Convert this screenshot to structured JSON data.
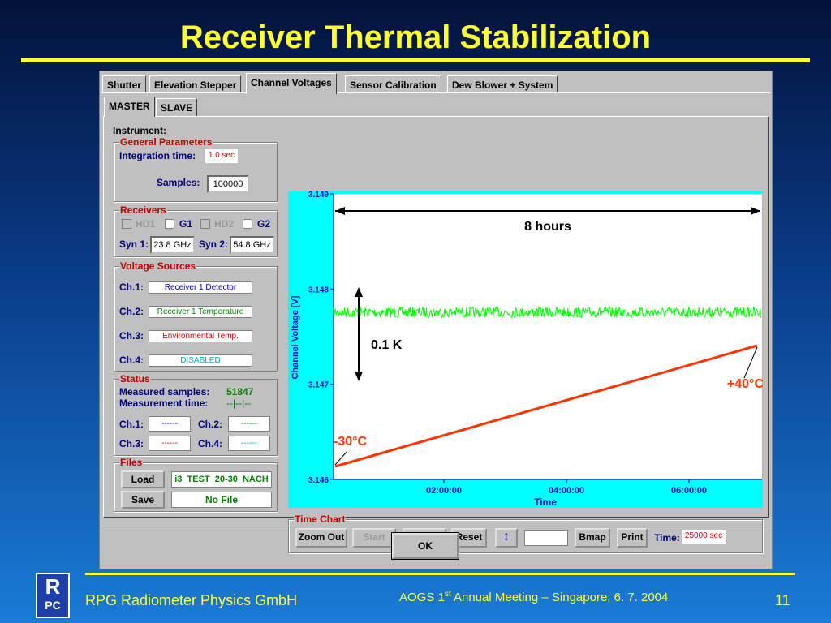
{
  "slide": {
    "title": "Receiver Thermal Stabilization",
    "footer_left": "RPG Radiometer Physics GmbH",
    "footer_center_pre": "AOGS 1",
    "footer_center_sup": "st",
    "footer_center_post": " Annual Meeting  – Singapore,  6. 7.  2004",
    "page_number": "11",
    "logo_top": "R",
    "logo_bottom": "PC"
  },
  "tabs": [
    "Shutter",
    "Elevation Stepper",
    "Channel Voltages",
    "Sensor Calibration",
    "Dew Blower + System"
  ],
  "active_tab": "Channel Voltages",
  "subtabs": [
    "MASTER",
    "SLAVE"
  ],
  "instrument_label": "Instrument:",
  "general": {
    "title": "General Parameters",
    "integration_label": "Integration time:",
    "integration_value": "1.0 sec",
    "samples_label": "Samples:",
    "samples_value": "100000"
  },
  "receivers": {
    "title": "Receivers",
    "items": [
      "HD1",
      "G1",
      "HD2",
      "G2"
    ],
    "syn1_label": "Syn 1:",
    "syn1_value": "23.8 GHz",
    "syn2_label": "Syn 2:",
    "syn2_value": "54.8 GHz"
  },
  "voltage_sources": {
    "title": "Voltage Sources",
    "channels": [
      {
        "label": "Ch.1:",
        "value": "Receiver 1 Detector",
        "color": "#0000cc"
      },
      {
        "label": "Ch.2:",
        "value": "Receiver 1 Temperature",
        "color": "#008000"
      },
      {
        "label": "Ch.3:",
        "value": "Environmental Temp.",
        "color": "#cc0000"
      },
      {
        "label": "Ch.4:",
        "value": "DISABLED",
        "color": "#00aacc"
      }
    ]
  },
  "status": {
    "title": "Status",
    "measured_label": "Measured samples:",
    "measured_value": "51847",
    "time_label": "Measurement time:",
    "time_value": "--|--|--",
    "ch1_label": "Ch.1:",
    "ch1_value": "------",
    "ch2_label": "Ch.2:",
    "ch2_value": "------",
    "ch3_label": "Ch.3:",
    "ch3_value": "------",
    "ch4_label": "Ch.4:",
    "ch4_value": "------"
  },
  "files": {
    "title": "Files",
    "load_label": "Load",
    "load_value": "i3_TEST_20-30_NACH",
    "save_label": "Save",
    "save_value": "No File"
  },
  "time_chart": {
    "title": "Time Chart",
    "zoom_out": "Zoom Out",
    "start": "Start",
    "stop": "Stop",
    "reset": "Reset",
    "bmap": "Bmap",
    "print": "Print",
    "time_label": "Time:",
    "time_value": "25000 sec"
  },
  "ok_label": "OK",
  "chart_data": {
    "type": "line",
    "xlabel": "Time",
    "ylabel": "Channel Voltage [V]",
    "x_ticks": [
      "02:00:00",
      "04:00:00",
      "06:00:00"
    ],
    "y_ticks": [
      "3.146",
      "3.147",
      "3.148",
      "3.149"
    ],
    "ylim": [
      3.146,
      3.149
    ],
    "series": [
      {
        "values_mean": 3.14775,
        "values_band": [
          3.1477,
          3.14781
        ],
        "color": "#00ff00"
      }
    ],
    "annotations": {
      "duration": "8 hours",
      "delta": "0.1 K",
      "temp_start": "-30°C",
      "temp_end": "+40°C"
    }
  }
}
